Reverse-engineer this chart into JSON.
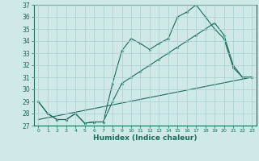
{
  "xlabel": "Humidex (Indice chaleur)",
  "ylabel": "",
  "background_color": "#cfe8e8",
  "grid_color": "#aacfcf",
  "line_color": "#1a6b5a",
  "xlim": [
    -0.5,
    23.5
  ],
  "ylim": [
    27,
    37
  ],
  "yticks": [
    27,
    28,
    29,
    30,
    31,
    32,
    33,
    34,
    35,
    36,
    37
  ],
  "xticks": [
    0,
    1,
    2,
    3,
    4,
    5,
    6,
    7,
    8,
    9,
    10,
    11,
    12,
    13,
    14,
    15,
    16,
    17,
    18,
    19,
    20,
    21,
    22,
    23
  ],
  "series1_x": [
    0,
    1,
    2,
    3,
    4,
    5,
    6,
    7,
    8,
    9,
    10,
    11,
    12,
    13,
    14,
    15,
    16,
    17,
    18,
    19,
    20,
    21,
    22,
    23
  ],
  "series1_y": [
    29,
    28,
    27.5,
    27.5,
    28,
    27.2,
    27.3,
    27.3,
    30.5,
    33.2,
    34.2,
    33.8,
    33.3,
    33.8,
    34.2,
    36.0,
    36.4,
    37.0,
    36.0,
    35.0,
    34.2,
    31.8,
    31.0,
    31.0
  ],
  "series2_x": [
    0,
    1,
    2,
    3,
    4,
    5,
    6,
    7,
    8,
    9,
    10,
    11,
    12,
    13,
    14,
    15,
    16,
    17,
    18,
    19,
    20,
    21,
    22,
    23
  ],
  "series2_y": [
    29,
    28,
    27.5,
    27.5,
    28,
    27.2,
    27.3,
    27.3,
    29.0,
    30.5,
    31.0,
    31.5,
    32.0,
    32.5,
    33.0,
    33.5,
    34.0,
    34.5,
    35.0,
    35.5,
    34.5,
    32.0,
    31.0,
    31.0
  ],
  "series3_x": [
    0,
    23
  ],
  "series3_y": [
    27.5,
    31.0
  ]
}
